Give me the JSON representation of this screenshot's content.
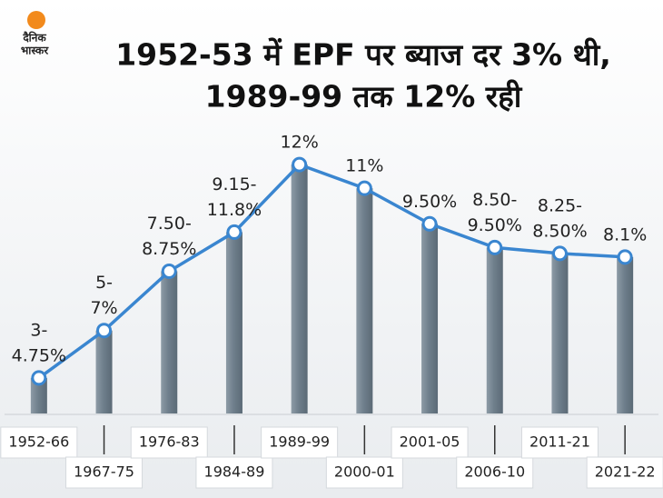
{
  "logo": [
    "दैनिक",
    "भास्कर"
  ],
  "chart_data": {
    "type": "line",
    "title": [
      "1952-53 में EPF पर ब्याज दर 3% थी,",
      "1989-99 तक 12% रही"
    ],
    "categories": [
      "1952-66",
      "1967-75",
      "1976-83",
      "1984-89",
      "1989-99",
      "2000-01",
      "2001-05",
      "2006-10",
      "2011-21",
      "2021-22"
    ],
    "values": [
      3,
      5,
      7.5,
      9.15,
      12,
      11,
      9.5,
      8.5,
      8.25,
      8.1
    ],
    "value_labels": [
      [
        "3-",
        "4.75%"
      ],
      [
        "5-",
        "7%"
      ],
      [
        "7.50-",
        "8.75%"
      ],
      [
        "9.15-",
        "11.8%"
      ],
      [
        "12%"
      ],
      [
        "11%"
      ],
      [
        "9.50%"
      ],
      [
        "8.50-",
        "9.50%"
      ],
      [
        "8.25-",
        "8.50%"
      ],
      [
        "8.1%"
      ]
    ],
    "color": "#3a86d0",
    "bar_color": "#6f7f8c",
    "ylim": [
      1.5,
      13
    ]
  }
}
